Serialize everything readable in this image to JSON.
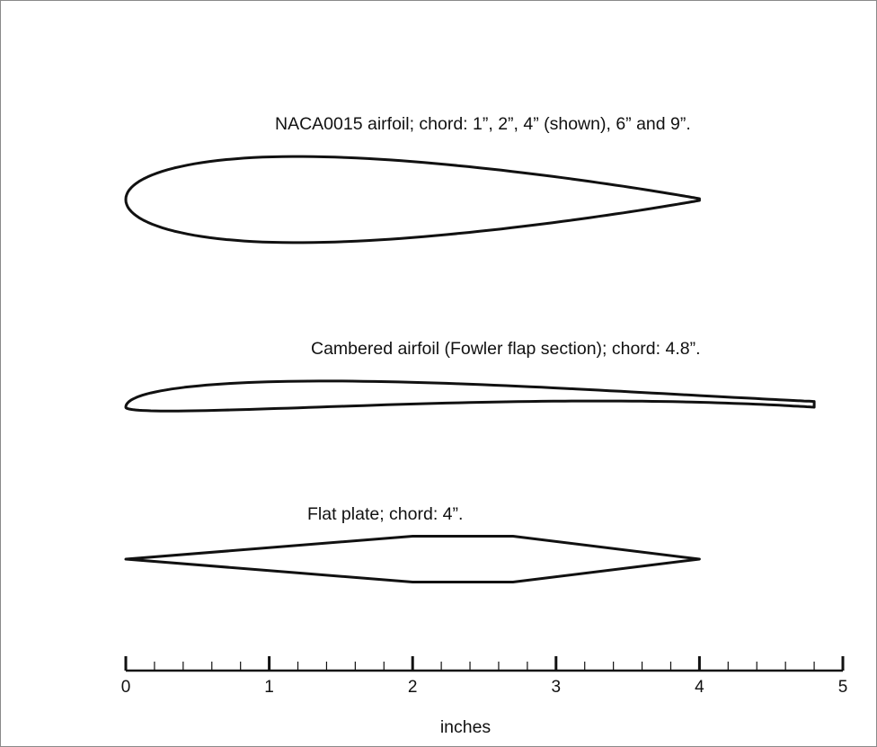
{
  "captions": {
    "naca": "NACA0015 airfoil; chord: 1”, 2”, 4” (shown), 6” and 9”.",
    "cambered": "Cambered airfoil (Fowler flap section); chord: 4.8”.",
    "flat_plate": "Flat plate; chord: 4”."
  },
  "scale": {
    "unit_label": "inches",
    "range": [
      0,
      5
    ],
    "major_ticks": [
      "0",
      "1",
      "2",
      "3",
      "4",
      "5"
    ],
    "minor_per_major": 5
  },
  "profiles": [
    {
      "id": "naca0015",
      "chord_in": 4,
      "thickness_ratio": 0.15,
      "kind": "symmetric-airfoil"
    },
    {
      "id": "cambered",
      "chord_in": 4.8,
      "kind": "cambered-airfoil"
    },
    {
      "id": "flat-plate",
      "chord_in": 4,
      "kind": "flat-plate",
      "station_points_in": [
        0,
        2,
        2.7,
        4
      ],
      "half_thickness_in": 0.16
    }
  ],
  "colors": {
    "line": "#111111",
    "background": "#ffffff",
    "border": "#8a8a8a"
  }
}
